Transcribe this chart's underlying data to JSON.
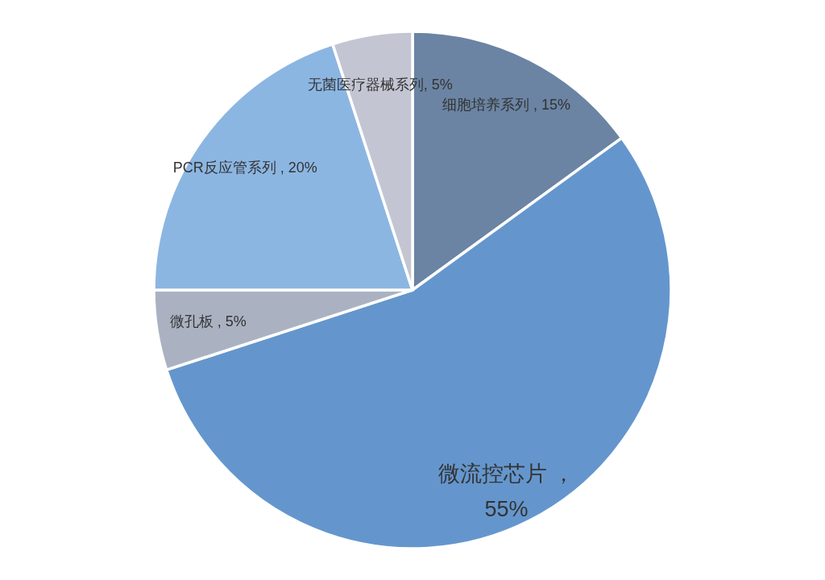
{
  "chart_data": {
    "type": "pie",
    "categories": [
      "细胞培养系列",
      "微流控芯片",
      "微孔板",
      "PCR反应管系列",
      "无菌医疗器械系列"
    ],
    "values": [
      15,
      55,
      5,
      20,
      5
    ],
    "colors": [
      "#6b84a3",
      "#6496cd",
      "#aab2c2",
      "#8cb6e2",
      "#c3c6d2"
    ],
    "value_labels": [
      " , 15%",
      " ，\n55%",
      " , 5%",
      " , 20%",
      ", 5%"
    ]
  }
}
